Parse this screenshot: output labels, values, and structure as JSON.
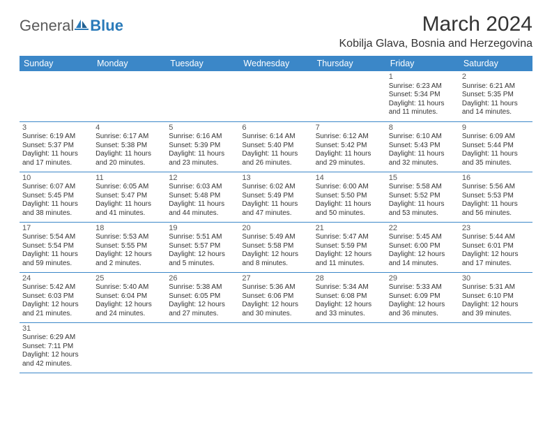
{
  "logo": {
    "text1": "General",
    "text2": "Blue"
  },
  "title": "March 2024",
  "location": "Kobilja Glava, Bosnia and Herzegovina",
  "colors": {
    "header_bg": "#3b87c8",
    "header_fg": "#ffffff",
    "rule": "#3b87c8",
    "text": "#333333"
  },
  "weekdays": [
    "Sunday",
    "Monday",
    "Tuesday",
    "Wednesday",
    "Thursday",
    "Friday",
    "Saturday"
  ],
  "days": {
    "1": {
      "sunrise": "6:23 AM",
      "sunset": "5:34 PM",
      "daylight": "11 hours and 11 minutes."
    },
    "2": {
      "sunrise": "6:21 AM",
      "sunset": "5:35 PM",
      "daylight": "11 hours and 14 minutes."
    },
    "3": {
      "sunrise": "6:19 AM",
      "sunset": "5:37 PM",
      "daylight": "11 hours and 17 minutes."
    },
    "4": {
      "sunrise": "6:17 AM",
      "sunset": "5:38 PM",
      "daylight": "11 hours and 20 minutes."
    },
    "5": {
      "sunrise": "6:16 AM",
      "sunset": "5:39 PM",
      "daylight": "11 hours and 23 minutes."
    },
    "6": {
      "sunrise": "6:14 AM",
      "sunset": "5:40 PM",
      "daylight": "11 hours and 26 minutes."
    },
    "7": {
      "sunrise": "6:12 AM",
      "sunset": "5:42 PM",
      "daylight": "11 hours and 29 minutes."
    },
    "8": {
      "sunrise": "6:10 AM",
      "sunset": "5:43 PM",
      "daylight": "11 hours and 32 minutes."
    },
    "9": {
      "sunrise": "6:09 AM",
      "sunset": "5:44 PM",
      "daylight": "11 hours and 35 minutes."
    },
    "10": {
      "sunrise": "6:07 AM",
      "sunset": "5:45 PM",
      "daylight": "11 hours and 38 minutes."
    },
    "11": {
      "sunrise": "6:05 AM",
      "sunset": "5:47 PM",
      "daylight": "11 hours and 41 minutes."
    },
    "12": {
      "sunrise": "6:03 AM",
      "sunset": "5:48 PM",
      "daylight": "11 hours and 44 minutes."
    },
    "13": {
      "sunrise": "6:02 AM",
      "sunset": "5:49 PM",
      "daylight": "11 hours and 47 minutes."
    },
    "14": {
      "sunrise": "6:00 AM",
      "sunset": "5:50 PM",
      "daylight": "11 hours and 50 minutes."
    },
    "15": {
      "sunrise": "5:58 AM",
      "sunset": "5:52 PM",
      "daylight": "11 hours and 53 minutes."
    },
    "16": {
      "sunrise": "5:56 AM",
      "sunset": "5:53 PM",
      "daylight": "11 hours and 56 minutes."
    },
    "17": {
      "sunrise": "5:54 AM",
      "sunset": "5:54 PM",
      "daylight": "11 hours and 59 minutes."
    },
    "18": {
      "sunrise": "5:53 AM",
      "sunset": "5:55 PM",
      "daylight": "12 hours and 2 minutes."
    },
    "19": {
      "sunrise": "5:51 AM",
      "sunset": "5:57 PM",
      "daylight": "12 hours and 5 minutes."
    },
    "20": {
      "sunrise": "5:49 AM",
      "sunset": "5:58 PM",
      "daylight": "12 hours and 8 minutes."
    },
    "21": {
      "sunrise": "5:47 AM",
      "sunset": "5:59 PM",
      "daylight": "12 hours and 11 minutes."
    },
    "22": {
      "sunrise": "5:45 AM",
      "sunset": "6:00 PM",
      "daylight": "12 hours and 14 minutes."
    },
    "23": {
      "sunrise": "5:44 AM",
      "sunset": "6:01 PM",
      "daylight": "12 hours and 17 minutes."
    },
    "24": {
      "sunrise": "5:42 AM",
      "sunset": "6:03 PM",
      "daylight": "12 hours and 21 minutes."
    },
    "25": {
      "sunrise": "5:40 AM",
      "sunset": "6:04 PM",
      "daylight": "12 hours and 24 minutes."
    },
    "26": {
      "sunrise": "5:38 AM",
      "sunset": "6:05 PM",
      "daylight": "12 hours and 27 minutes."
    },
    "27": {
      "sunrise": "5:36 AM",
      "sunset": "6:06 PM",
      "daylight": "12 hours and 30 minutes."
    },
    "28": {
      "sunrise": "5:34 AM",
      "sunset": "6:08 PM",
      "daylight": "12 hours and 33 minutes."
    },
    "29": {
      "sunrise": "5:33 AM",
      "sunset": "6:09 PM",
      "daylight": "12 hours and 36 minutes."
    },
    "30": {
      "sunrise": "5:31 AM",
      "sunset": "6:10 PM",
      "daylight": "12 hours and 39 minutes."
    },
    "31": {
      "sunrise": "6:29 AM",
      "sunset": "7:11 PM",
      "daylight": "12 hours and 42 minutes."
    }
  },
  "layout": [
    [
      null,
      null,
      null,
      null,
      null,
      "1",
      "2"
    ],
    [
      "3",
      "4",
      "5",
      "6",
      "7",
      "8",
      "9"
    ],
    [
      "10",
      "11",
      "12",
      "13",
      "14",
      "15",
      "16"
    ],
    [
      "17",
      "18",
      "19",
      "20",
      "21",
      "22",
      "23"
    ],
    [
      "24",
      "25",
      "26",
      "27",
      "28",
      "29",
      "30"
    ],
    [
      "31",
      null,
      null,
      null,
      null,
      null,
      null
    ]
  ],
  "labels": {
    "sunrise": "Sunrise:",
    "sunset": "Sunset:",
    "daylight": "Daylight:"
  }
}
